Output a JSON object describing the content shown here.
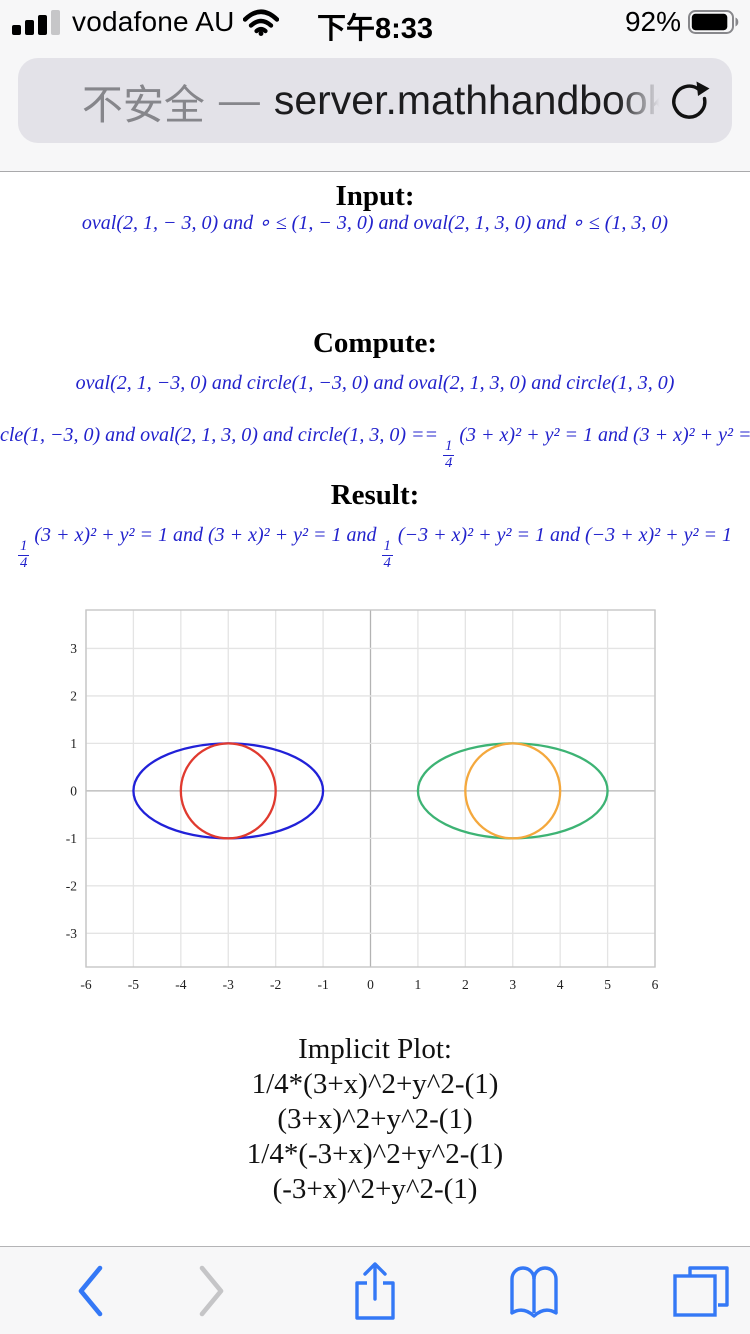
{
  "status_bar": {
    "carrier": "vodafone AU",
    "time": "下午8:33",
    "battery_percent": "92%",
    "battery_level": 0.92
  },
  "address_bar": {
    "security_label": "不安全",
    "separator": "—",
    "url": "server.mathhandbook"
  },
  "content": {
    "input_heading": "Input:",
    "input_line": [
      "oval(2, 1, − 3, 0) and ∘ ≤ (1, − 3, 0) and oval(2, 1, 3, 0) and ∘ ≤ (1, 3, 0)"
    ],
    "compute_heading": "Compute:",
    "compute_line1": [
      "oval(2, 1, −3, 0) and circle(1, −3, 0) and oval(2, 1, 3, 0) and circle(1, 3, 0)"
    ],
    "compute_line2": [
      "cle(1, −3, 0) and oval(2, 1, 3, 0) and circle(1, 3, 0) == ",
      {
        "frac": [
          "1",
          "4"
        ]
      },
      " (3 + x)² + y² = 1 and (3 + x)² + y² ="
    ],
    "result_heading": "Result:",
    "result_line": [
      {
        "frac": [
          "1",
          "4"
        ]
      },
      " (3 + x)² + y² = 1 and (3 + x)² + y² = 1 and ",
      {
        "frac": [
          "1",
          "4"
        ]
      },
      " (−3 + x)² + y² = 1 and (−3 + x)² + y² = 1"
    ],
    "implicit_heading": "Implicit Plot:",
    "implicit_lines": [
      "1/4*(3+x)^2+y^2-(1)",
      "(3+x)^2+y^2-(1)",
      "1/4*(-3+x)^2+y^2-(1)",
      "(-3+x)^2+y^2-(1)"
    ]
  },
  "chart_data": {
    "type": "line",
    "subtype": "implicit-ellipse-curves",
    "title": "",
    "xlabel": "",
    "ylabel": "",
    "xlim": [
      -6,
      6
    ],
    "ylim": [
      -3.71,
      3.81
    ],
    "x_ticks": [
      -6,
      -5,
      -4,
      -3,
      -2,
      -1,
      0,
      1,
      2,
      3,
      4,
      5,
      6
    ],
    "y_ticks": [
      -3,
      -2,
      -1,
      0,
      1,
      2,
      3
    ],
    "grid": true,
    "colors": {
      "grid": "#e4e4e4",
      "axis": "#b3b3b3",
      "border": "#c6c6c6",
      "tick_text": "#222222"
    },
    "curves": [
      {
        "name": "oval(2,1,-3,0)",
        "equation": "1/4*(3+x)^2+y^2=1",
        "cx": -3,
        "cy": 0,
        "rx": 2,
        "ry": 1,
        "color": "#2121d8"
      },
      {
        "name": "circle(1,-3,0)",
        "equation": "(3+x)^2+y^2=1",
        "cx": -3,
        "cy": 0,
        "rx": 1,
        "ry": 1,
        "color": "#e03a2f"
      },
      {
        "name": "oval(2,1,3,0)",
        "equation": "1/4*(-3+x)^2+y^2=1",
        "cx": 3,
        "cy": 0,
        "rx": 2,
        "ry": 1,
        "color": "#3db374"
      },
      {
        "name": "circle(1,3,0)",
        "equation": "(-3+x)^2+y^2=1",
        "cx": 3,
        "cy": 0,
        "rx": 1,
        "ry": 1,
        "color": "#f4a83d"
      }
    ]
  },
  "toolbar": {
    "back": "back",
    "forward": "forward",
    "share": "share",
    "bookmarks": "bookmarks",
    "tabs": "tabs",
    "accent": "#3478f6",
    "disabled": "#c5c5c7"
  }
}
